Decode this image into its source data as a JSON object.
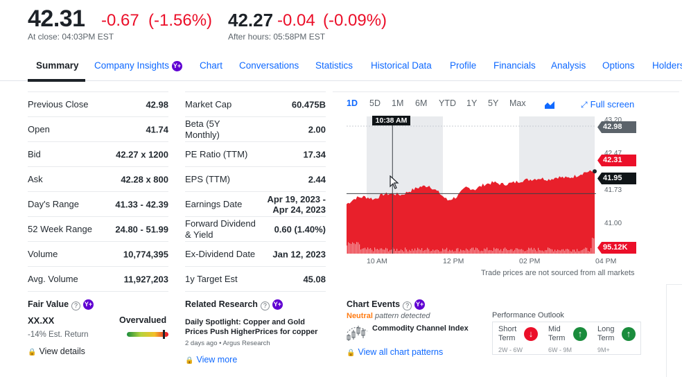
{
  "quote": {
    "price": "42.31",
    "change": "-0.67",
    "change_pct": "(-1.56%)",
    "close_label": "At close: 04:03PM EST",
    "ah_price": "42.27",
    "ah_change": "-0.04",
    "ah_change_pct": "(-0.09%)",
    "ah_label": "After hours: 05:58PM EST"
  },
  "tabs": [
    "Summary",
    "Company Insights",
    "Chart",
    "Conversations",
    "Statistics",
    "Historical Data",
    "Profile",
    "Financials",
    "Analysis",
    "Options",
    "Holders"
  ],
  "plus_badge": "Y+",
  "left_stats": [
    {
      "label": "Previous Close",
      "value": "42.98"
    },
    {
      "label": "Open",
      "value": "41.74"
    },
    {
      "label": "Bid",
      "value": "42.27 x 1200"
    },
    {
      "label": "Ask",
      "value": "42.28 x 800"
    },
    {
      "label": "Day's Range",
      "value": "41.33 - 42.39"
    },
    {
      "label": "52 Week Range",
      "value": "24.80 - 51.99"
    },
    {
      "label": "Volume",
      "value": "10,774,395"
    },
    {
      "label": "Avg. Volume",
      "value": "11,927,203"
    }
  ],
  "mid_stats": [
    {
      "label": "Market Cap",
      "value": "60.475B"
    },
    {
      "label": "Beta (5Y Monthly)",
      "value": "2.00"
    },
    {
      "label": "PE Ratio (TTM)",
      "value": "17.34"
    },
    {
      "label": "EPS (TTM)",
      "value": "2.44"
    },
    {
      "label": "Earnings Date",
      "value": "Apr 19, 2023 - Apr 24, 2023"
    },
    {
      "label": "Forward Dividend & Yield",
      "value": "0.60 (1.40%)"
    },
    {
      "label": "Ex-Dividend Date",
      "value": "Jan 12, 2023"
    },
    {
      "label": "1y Target Est",
      "value": "45.08"
    }
  ],
  "chart": {
    "ranges": [
      "1D",
      "5D",
      "1M",
      "6M",
      "YTD",
      "1Y",
      "5Y",
      "Max"
    ],
    "selected_range": "1D",
    "chart_type_icon": "area-chart-icon",
    "fullscreen_label": "Full screen",
    "x_labels": [
      "10 AM",
      "12 PM",
      "02 PM",
      "04 PM"
    ],
    "crosshair_time": "10:38 AM",
    "price_labels": {
      "top": "43.20",
      "upper": "42.47",
      "lower": "41.73",
      "bottom": "41.00"
    },
    "flags": {
      "prev_close": "42.98",
      "current": "42.31",
      "crosshair": "41.95",
      "volume": "95.12K"
    },
    "footnote": "Trade prices are not sourced from all markets",
    "colors": {
      "area": "#e8202b",
      "flag_gray": "#5b636a",
      "flag_red": "#eb0f29",
      "flag_black": "#101518",
      "shade": "#e9ebee"
    }
  },
  "chart_data": {
    "type": "area",
    "x": [
      "09:30",
      "09:45",
      "10:00",
      "10:15",
      "10:30",
      "10:38",
      "10:45",
      "11:00",
      "11:15",
      "11:30",
      "11:45",
      "12:00",
      "12:15",
      "12:30",
      "12:45",
      "13:00",
      "13:15",
      "13:30",
      "13:45",
      "14:00",
      "14:15",
      "14:30",
      "14:45",
      "15:00",
      "15:15",
      "15:30",
      "15:45",
      "16:00"
    ],
    "series": [
      {
        "values": [
          41.78,
          41.88,
          41.9,
          41.86,
          41.94,
          41.95,
          41.93,
          42.0,
          42.06,
          42.08,
          41.97,
          41.84,
          41.9,
          42.05,
          42.02,
          42.1,
          42.13,
          42.1,
          42.12,
          42.16,
          42.18,
          42.2,
          42.18,
          42.22,
          42.2,
          42.24,
          42.3,
          42.31
        ]
      }
    ],
    "ylim": [
      41.0,
      43.2
    ],
    "yticks": [
      41.0,
      41.73,
      42.47,
      43.2
    ],
    "xticks": [
      "10 AM",
      "12 PM",
      "02 PM",
      "04 PM"
    ],
    "reference_lines": {
      "prev_close": 42.98,
      "crosshair": 41.95
    }
  },
  "fair_value": {
    "title": "Fair Value",
    "value": "XX.XX",
    "verdict": "Overvalued",
    "est_return": "-14% Est. Return",
    "link": "View details"
  },
  "research": {
    "title": "Related Research",
    "headline": "Daily Spotlight: Copper and Gold Prices Push HigherPrices for copper and gol...",
    "meta": "2 days ago • Argus Research",
    "link": "View more"
  },
  "events": {
    "title": "Chart Events",
    "neutral": "Neutral",
    "pattern": "pattern detected",
    "indicator": "Commodity Channel Index",
    "link": "View all chart patterns"
  },
  "outlook": {
    "title": "Performance Outlook",
    "items": [
      {
        "label": "Short Term",
        "range": "2W - 6W",
        "direction": "down",
        "color": "#eb0f29"
      },
      {
        "label": "Mid Term",
        "range": "6W - 9M",
        "direction": "up",
        "color": "#1a8c3c"
      },
      {
        "label": "Long Term",
        "range": "9M+",
        "direction": "up",
        "color": "#1a8c3c"
      }
    ]
  }
}
